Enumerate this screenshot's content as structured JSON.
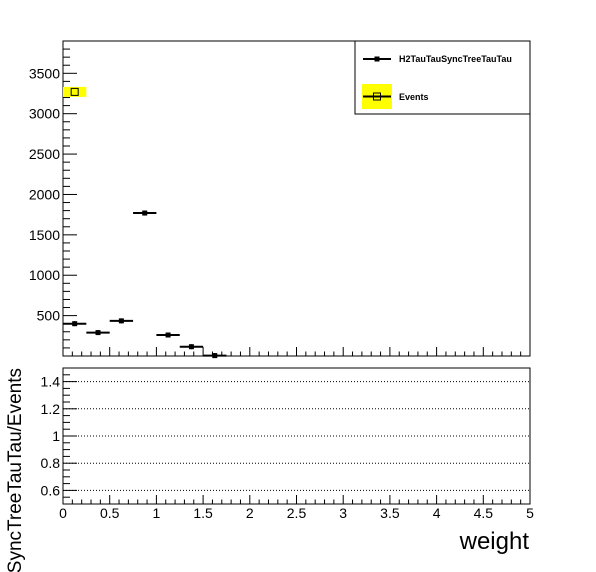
{
  "chart_data": [
    {
      "type": "scatter",
      "panel": "main",
      "xlim": [
        0,
        5
      ],
      "ylim": [
        0,
        3900
      ],
      "yticks": [
        "500",
        "1000",
        "1500",
        "2000",
        "2500",
        "3000",
        "3500"
      ],
      "grid": false,
      "legend_position": "top-right",
      "series": [
        {
          "name": "H2TauTauSyncTreeTauTau",
          "color": "#000000",
          "marker": "filled-square",
          "bin_width": 0.25,
          "points": [
            {
              "x": 0.125,
              "y": 400
            },
            {
              "x": 0.375,
              "y": 290
            },
            {
              "x": 0.625,
              "y": 435
            },
            {
              "x": 0.875,
              "y": 1770
            },
            {
              "x": 1.125,
              "y": 260
            },
            {
              "x": 1.375,
              "y": 115
            },
            {
              "x": 1.625,
              "y": 5
            }
          ]
        },
        {
          "name": "Events",
          "color": "#000000",
          "fill": "#ffff00",
          "marker": "open-square",
          "bin_width": 0.25,
          "points": [
            {
              "x": 0.125,
              "y": 3270
            }
          ]
        }
      ]
    },
    {
      "type": "scatter",
      "panel": "ratio",
      "xlabel": "weight",
      "ylabel": "SyncTreeTauTau/Events",
      "xlim": [
        0,
        5
      ],
      "ylim": [
        0.5,
        1.5
      ],
      "xticks": [
        "0",
        "0.5",
        "1",
        "1.5",
        "2",
        "2.5",
        "3",
        "3.5",
        "4",
        "4.5",
        "5"
      ],
      "yticks": [
        "0.6",
        "0.8",
        "1",
        "1.2",
        "1.4"
      ],
      "grid": true,
      "series": []
    }
  ]
}
